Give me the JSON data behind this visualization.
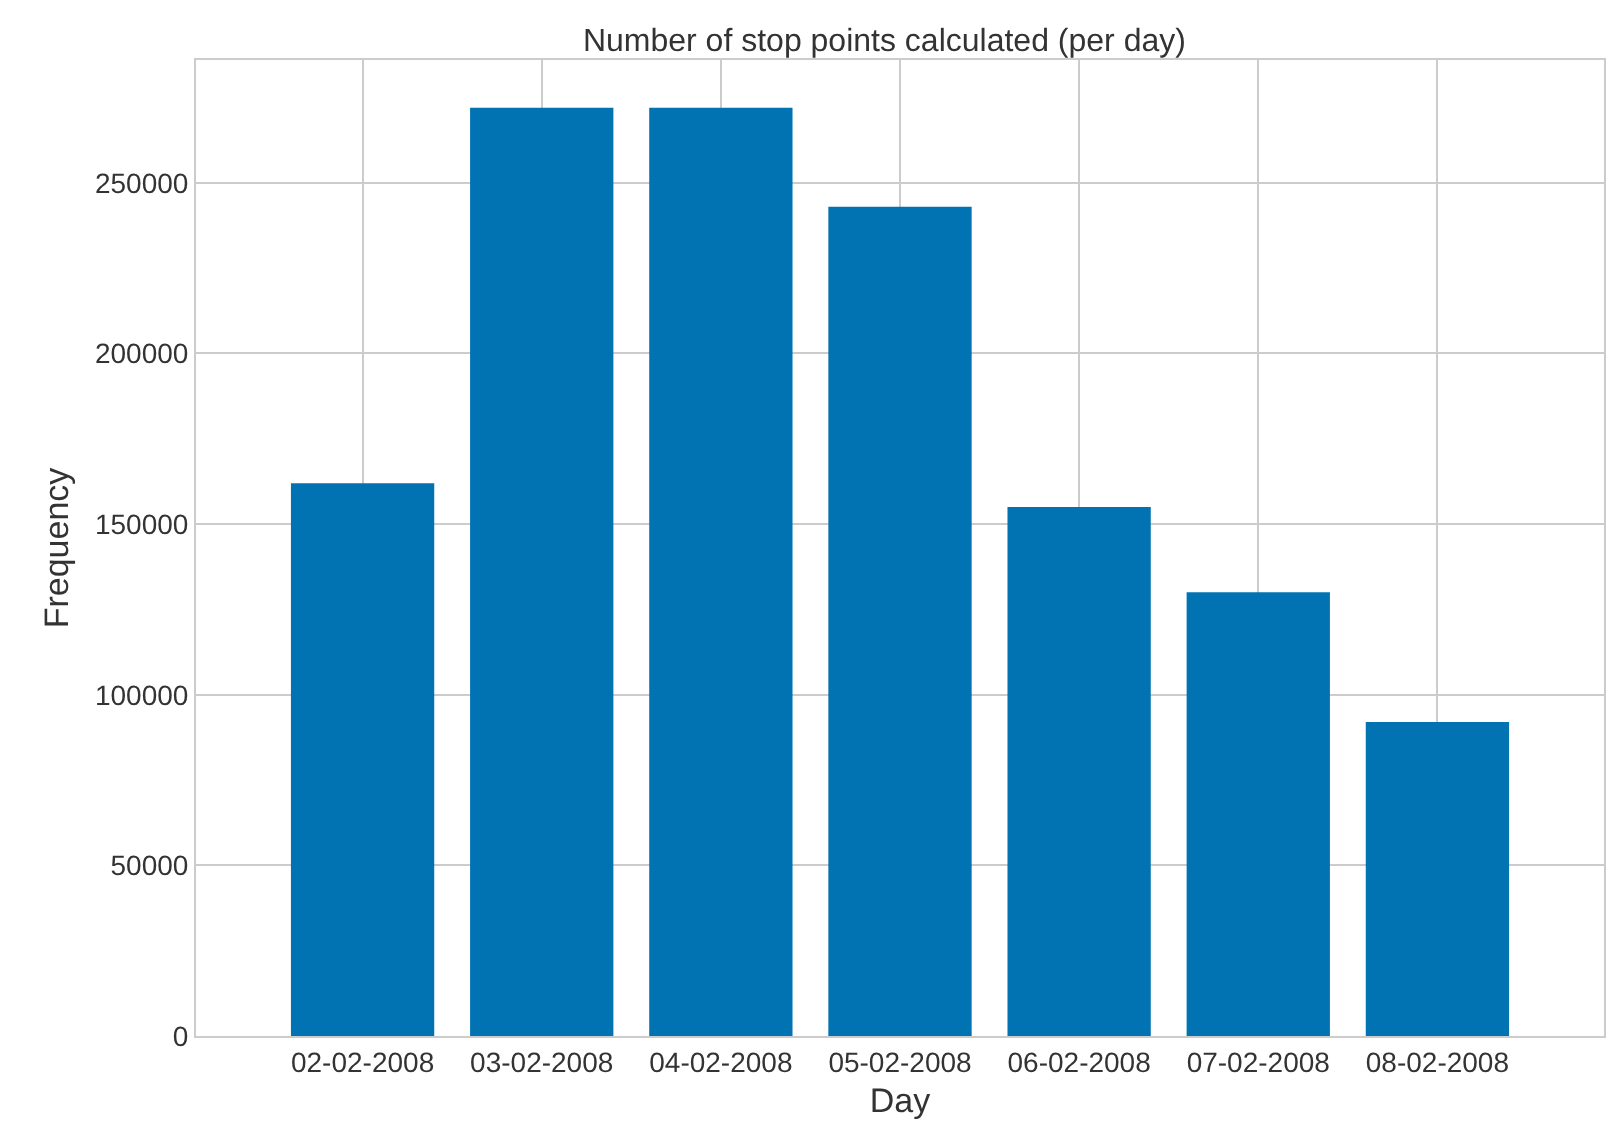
{
  "chart_data": {
    "type": "bar",
    "title": "Number of stop points calculated (per day)",
    "xlabel": "Day",
    "ylabel": "Frequency",
    "categories": [
      "02-02-2008",
      "03-02-2008",
      "04-02-2008",
      "05-02-2008",
      "06-02-2008",
      "07-02-2008",
      "08-02-2008"
    ],
    "values": [
      162000,
      272000,
      272000,
      243000,
      155000,
      130000,
      92000
    ],
    "color": "#0173b2",
    "ylim": [
      0,
      286000
    ],
    "yticks": [
      0,
      50000,
      100000,
      150000,
      200000,
      250000
    ],
    "grid": true
  }
}
